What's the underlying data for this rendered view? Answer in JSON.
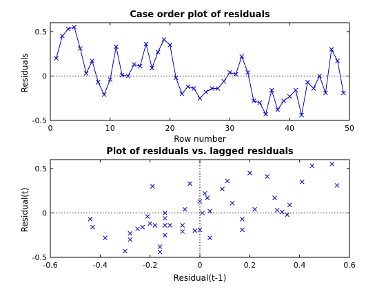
{
  "colors": {
    "series": "#0000cc",
    "axes": "#000000",
    "background": "#ffffff"
  },
  "chart_data": [
    {
      "type": "line",
      "marker": "x-marker",
      "title": "Case order plot of residuals",
      "xlabel": "Row number",
      "ylabel": "Residuals",
      "xlim": [
        0,
        50
      ],
      "ylim": [
        -0.5,
        0.6
      ],
      "xticks": [
        0,
        10,
        20,
        30,
        40,
        50
      ],
      "yticks": [
        -0.5,
        0,
        0.5
      ],
      "grid": false,
      "reference_line_y": 0,
      "series": [
        {
          "x": [
            1,
            2,
            3,
            4,
            5,
            6,
            7,
            8,
            9,
            10,
            11,
            12,
            13,
            14,
            15,
            16,
            17,
            18,
            19,
            20,
            21,
            22,
            23,
            24,
            25,
            26,
            27,
            28,
            29,
            30,
            31,
            32,
            33,
            34,
            35,
            36,
            37,
            38,
            39,
            40,
            41,
            42,
            43,
            44,
            45,
            46,
            47,
            48,
            49
          ],
          "values": [
            0.2,
            0.45,
            0.53,
            0.55,
            0.31,
            0.03,
            0.17,
            -0.07,
            -0.21,
            -0.04,
            0.33,
            0.01,
            0.0,
            0.13,
            0.11,
            0.36,
            0.09,
            0.27,
            0.41,
            0.35,
            -0.02,
            -0.2,
            -0.12,
            -0.14,
            -0.25,
            -0.18,
            -0.14,
            -0.14,
            -0.06,
            0.04,
            0.02,
            0.22,
            0.04,
            -0.28,
            -0.3,
            -0.43,
            -0.16,
            -0.38,
            -0.28,
            -0.23,
            -0.16,
            -0.44,
            -0.07,
            -0.14,
            0.0,
            -0.19,
            0.3,
            0.17,
            -0.19
          ]
        }
      ]
    },
    {
      "type": "scatter",
      "marker": "x-marker",
      "title": "Plot of residuals vs. lagged residuals",
      "xlabel": "Residual(t-1)",
      "ylabel": "Residual(t)",
      "xlim": [
        -0.6,
        0.6
      ],
      "ylim": [
        -0.5,
        0.6
      ],
      "xticks": [
        -0.6,
        -0.4,
        -0.2,
        0,
        0.2,
        0.4,
        0.6
      ],
      "yticks": [
        -0.5,
        0,
        0.5
      ],
      "grid": false,
      "reference_line_x": 0,
      "reference_line_y": 0,
      "series": [
        {
          "x": [
            0.2,
            0.45,
            0.53,
            0.55,
            0.31,
            0.03,
            0.17,
            -0.07,
            -0.21,
            -0.04,
            0.33,
            0.01,
            0.0,
            0.13,
            0.11,
            0.36,
            0.09,
            0.27,
            0.41,
            0.35,
            -0.02,
            -0.2,
            -0.12,
            -0.14,
            -0.25,
            -0.18,
            -0.14,
            -0.14,
            -0.06,
            0.04,
            0.02,
            0.22,
            0.04,
            -0.28,
            -0.3,
            -0.43,
            -0.16,
            -0.38,
            -0.28,
            -0.23,
            -0.16,
            -0.44,
            -0.07,
            -0.14,
            0.0,
            -0.19,
            0.3,
            0.17
          ],
          "values": [
            0.45,
            0.53,
            0.55,
            0.31,
            0.03,
            0.17,
            -0.07,
            -0.21,
            -0.04,
            0.33,
            0.01,
            0.0,
            0.13,
            0.11,
            0.36,
            0.09,
            0.27,
            0.41,
            0.35,
            -0.02,
            -0.2,
            -0.12,
            -0.14,
            -0.25,
            -0.18,
            -0.14,
            -0.14,
            -0.06,
            0.04,
            0.02,
            0.22,
            0.04,
            -0.28,
            -0.3,
            -0.43,
            -0.16,
            -0.38,
            -0.28,
            -0.23,
            -0.16,
            -0.44,
            -0.07,
            -0.14,
            0.0,
            -0.19,
            0.3,
            0.17,
            -0.19
          ]
        }
      ]
    }
  ]
}
